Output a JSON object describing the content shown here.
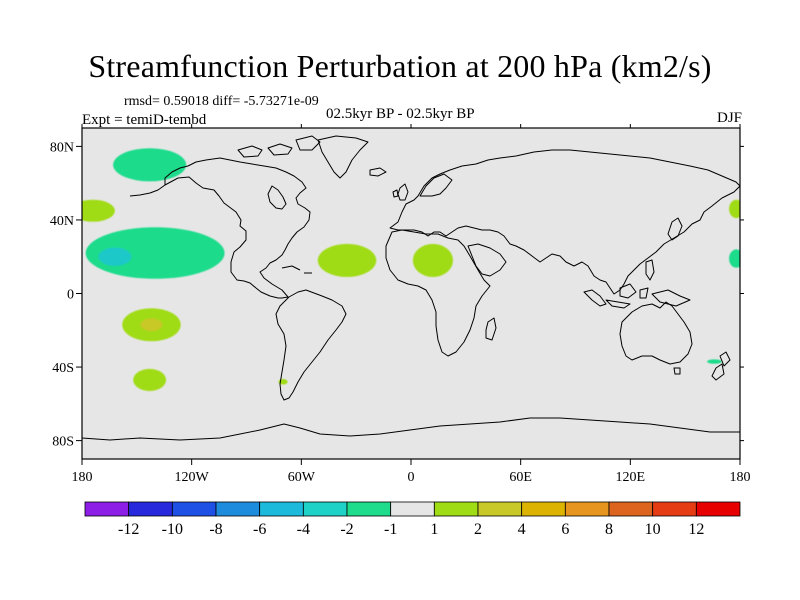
{
  "title": "Streamfunction Perturbation at 200 hPa (km2/s)",
  "stats": "rmsd= 0.59018 diff= -5.73271e-09",
  "experiment": "Expt = temiD-tembd",
  "period": "02.5kyr BP - 02.5kyr BP",
  "season": "DJF",
  "map": {
    "lon_range": [
      -180,
      180
    ],
    "lat_range": [
      -90,
      90
    ],
    "background": "#e6e6e6",
    "coastline_color": "#000000",
    "lat_ticks": [
      {
        "value": 80,
        "label": "80N"
      },
      {
        "value": 40,
        "label": "40N"
      },
      {
        "value": 0,
        "label": "0"
      },
      {
        "value": -40,
        "label": "40S"
      },
      {
        "value": -80,
        "label": "80S"
      }
    ],
    "lon_ticks": [
      {
        "value": -180,
        "label": "180"
      },
      {
        "value": -120,
        "label": "120W"
      },
      {
        "value": -60,
        "label": "60W"
      },
      {
        "value": 0,
        "label": "0"
      },
      {
        "value": 60,
        "label": "60E"
      },
      {
        "value": 120,
        "label": "120E"
      },
      {
        "value": 180,
        "label": "180"
      }
    ]
  },
  "anomalies": [
    {
      "lon": -143,
      "lat": 70,
      "rx": 20,
      "ry": 9,
      "level": "-1",
      "color": "#1fdc8c"
    },
    {
      "lon": -174,
      "lat": 45,
      "rx": 12,
      "ry": 6,
      "level": "1",
      "color": "#a0dc14"
    },
    {
      "lon": -140,
      "lat": 22,
      "rx": 38,
      "ry": 14,
      "level": "-1",
      "color": "#1fdc8c"
    },
    {
      "lon": -162,
      "lat": 20,
      "rx": 9,
      "ry": 5,
      "level": "-2",
      "color": "#1ec8c8"
    },
    {
      "lon": -142,
      "lat": -17,
      "rx": 16,
      "ry": 9,
      "level": "1",
      "color": "#a0dc14"
    },
    {
      "lon": -142,
      "lat": -17,
      "rx": 6,
      "ry": 3.5,
      "level": "2",
      "color": "#c8c828"
    },
    {
      "lon": -143,
      "lat": -47,
      "rx": 9,
      "ry": 6,
      "level": "1",
      "color": "#a0dc14"
    },
    {
      "lon": -35,
      "lat": 18,
      "rx": 16,
      "ry": 9,
      "level": "1",
      "color": "#a0dc14"
    },
    {
      "lon": 12,
      "lat": 18,
      "rx": 11,
      "ry": 9,
      "level": "1",
      "color": "#a0dc14"
    },
    {
      "lon": -70,
      "lat": -48,
      "rx": 2.5,
      "ry": 1.5,
      "level": "1",
      "color": "#a0dc14"
    },
    {
      "lon": 178,
      "lat": 46,
      "rx": 4,
      "ry": 5,
      "level": "1",
      "color": "#a0dc14"
    },
    {
      "lon": 178,
      "lat": 19,
      "rx": 4,
      "ry": 5,
      "level": "-1",
      "color": "#1fdc8c"
    },
    {
      "lon": 166,
      "lat": -37,
      "rx": 4,
      "ry": 1.2,
      "level": "-1",
      "color": "#1fdc8c"
    }
  ],
  "colorbar": {
    "colors": [
      "#8c1ee6",
      "#2828dc",
      "#1e50e6",
      "#1e8cdc",
      "#1ebadc",
      "#1ed2c8",
      "#1fdc8c",
      "#e6e6e6",
      "#a0dc14",
      "#c8c828",
      "#dcb400",
      "#e6961e",
      "#dc641e",
      "#e63c14",
      "#e60000"
    ],
    "labels": [
      "-12",
      "-10",
      "-8",
      "-6",
      "-4",
      "-2",
      "-1",
      "1",
      "2",
      "4",
      "6",
      "8",
      "10",
      "12"
    ]
  }
}
